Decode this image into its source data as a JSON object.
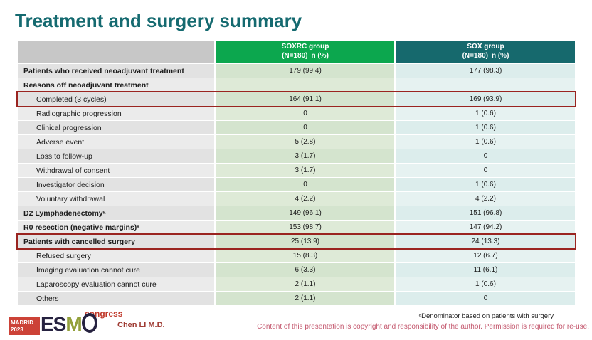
{
  "slide": {
    "title": "Treatment and surgery summary"
  },
  "table": {
    "columns": [
      {
        "name": "",
        "sub": ""
      },
      {
        "name": "SOXRC group",
        "sub": "(N=180) n (%)"
      },
      {
        "name": "SOX group",
        "sub": "(N=180) n (%)"
      }
    ],
    "rows": [
      {
        "label": "Patients who received neoadjuvant treatment",
        "bold": true,
        "indent": false,
        "soxrc": "179 (99.4)",
        "sox": "177 (98.3)",
        "highlight": false
      },
      {
        "label": "Reasons off neoadjuvant treatment",
        "bold": true,
        "indent": false,
        "soxrc": "",
        "sox": "",
        "highlight": false
      },
      {
        "label": "Completed (3 cycles)",
        "bold": false,
        "indent": true,
        "soxrc": "164 (91.1)",
        "sox": "169 (93.9)",
        "highlight": true
      },
      {
        "label": "Radiographic progression",
        "bold": false,
        "indent": true,
        "soxrc": "0",
        "sox": "1 (0.6)",
        "highlight": false
      },
      {
        "label": "Clinical progression",
        "bold": false,
        "indent": true,
        "soxrc": "0",
        "sox": "1 (0.6)",
        "highlight": false
      },
      {
        "label": "Adverse event",
        "bold": false,
        "indent": true,
        "soxrc": "5 (2.8)",
        "sox": "1 (0.6)",
        "highlight": false
      },
      {
        "label": "Loss to follow-up",
        "bold": false,
        "indent": true,
        "soxrc": "3 (1.7)",
        "sox": "0",
        "highlight": false
      },
      {
        "label": "Withdrawal of consent",
        "bold": false,
        "indent": true,
        "soxrc": "3 (1.7)",
        "sox": "0",
        "highlight": false
      },
      {
        "label": "Investigator decision",
        "bold": false,
        "indent": true,
        "soxrc": "0",
        "sox": "1 (0.6)",
        "highlight": false
      },
      {
        "label": "Voluntary withdrawal",
        "bold": false,
        "indent": true,
        "soxrc": "4 (2.2)",
        "sox": "4 (2.2)",
        "highlight": false
      },
      {
        "label": "D2 Lymphadenectomyᵃ",
        "bold": true,
        "indent": false,
        "soxrc": "149 (96.1)",
        "sox": "151 (96.8)",
        "highlight": false
      },
      {
        "label": "R0 resection (negative margins)ᵃ",
        "bold": true,
        "indent": false,
        "soxrc": "153 (98.7)",
        "sox": "147 (94.2)",
        "highlight": false
      },
      {
        "label": "Patients with cancelled surgery",
        "bold": true,
        "indent": false,
        "soxrc": "25 (13.9)",
        "sox": "24 (13.3)",
        "highlight": true
      },
      {
        "label": "Refused surgery",
        "bold": false,
        "indent": true,
        "soxrc": "15 (8.3)",
        "sox": "12 (6.7)",
        "highlight": false
      },
      {
        "label": "Imaging evaluation cannot cure",
        "bold": false,
        "indent": true,
        "soxrc": "6 (3.3)",
        "sox": "11 (6.1)",
        "highlight": false
      },
      {
        "label": "Laparoscopy evaluation cannot cure",
        "bold": false,
        "indent": true,
        "soxrc": "2 (1.1)",
        "sox": "1 (0.6)",
        "highlight": false
      },
      {
        "label": "Others",
        "bold": false,
        "indent": true,
        "soxrc": "2 (1.1)",
        "sox": "0",
        "highlight": false
      }
    ]
  },
  "footer": {
    "footnote": "ᵃDenominator based on patients with surgery",
    "copyright": "Content of this presentation is copyright and responsibility of the author. Permission is required for re-use.",
    "presenter": "Chen LI M.D.",
    "logo": {
      "city": "MADRID",
      "year": "2023",
      "congress": "congress"
    }
  },
  "colors": {
    "title": "#156a70",
    "header_soxrc": "#0ca74e",
    "header_sox": "#16696d",
    "highlight_border": "#9a2420",
    "copyright_text": "#c4586e"
  }
}
